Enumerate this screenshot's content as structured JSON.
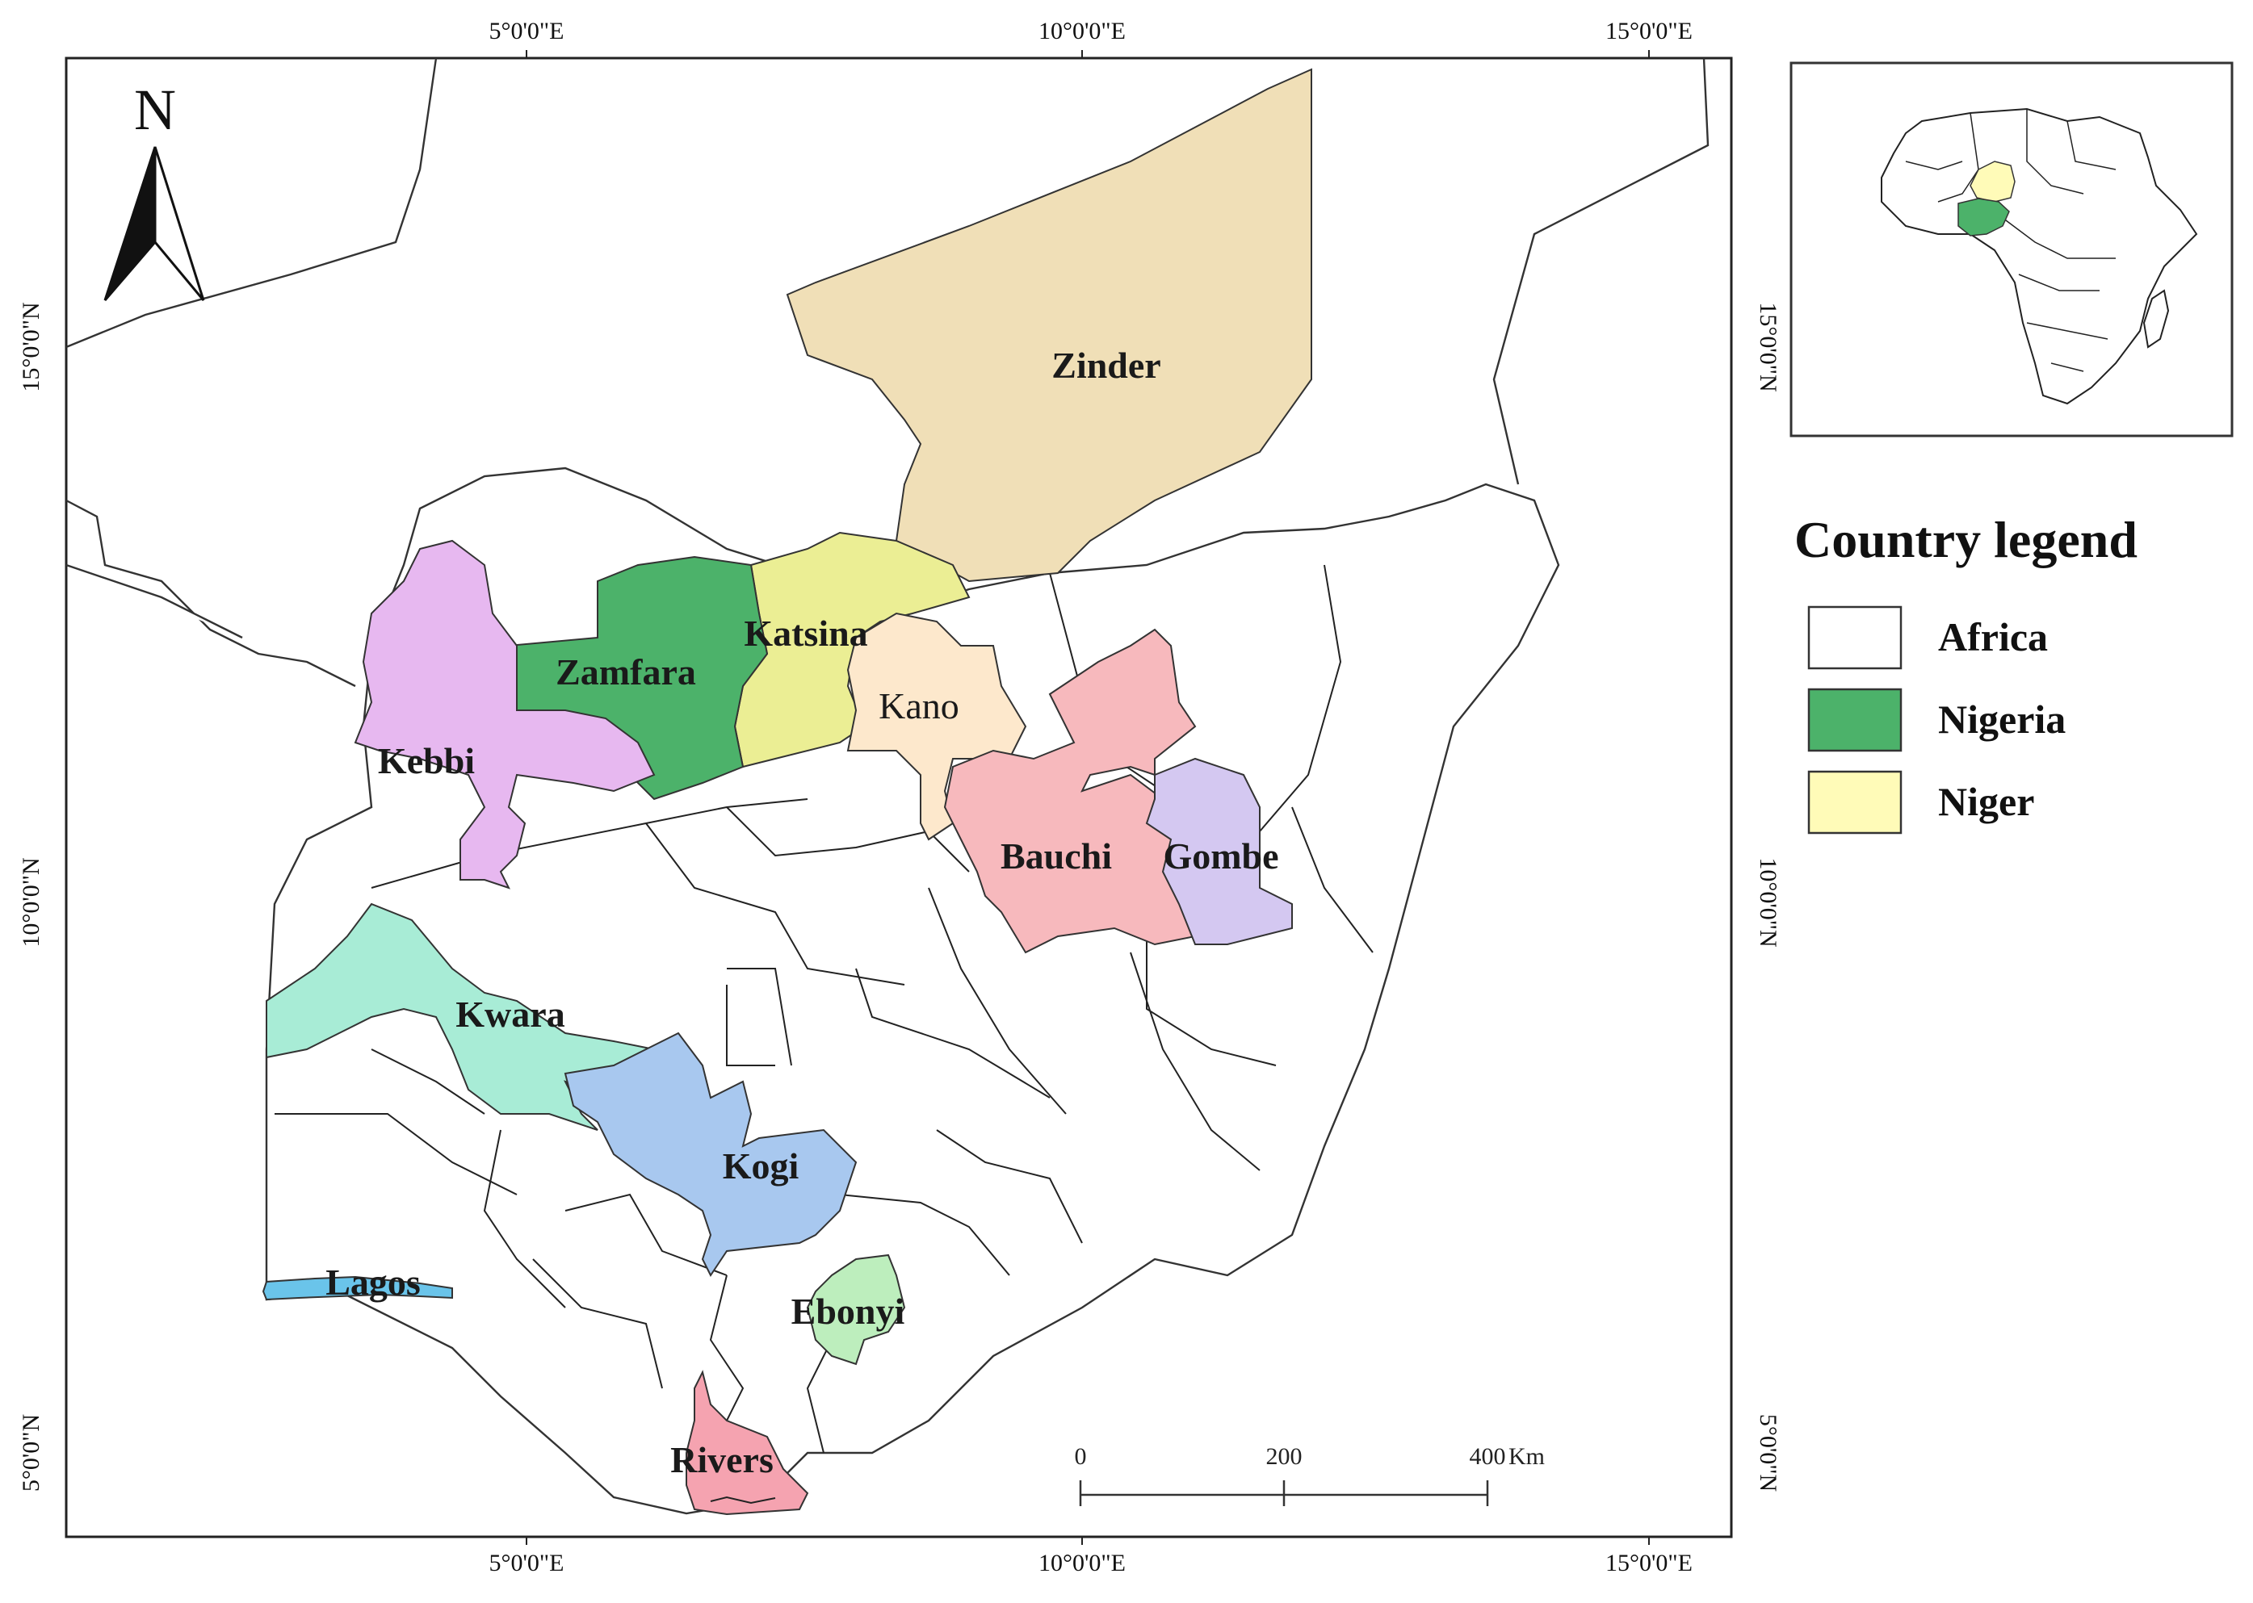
{
  "map": {
    "north_arrow": {
      "label": "N"
    },
    "coordinates": {
      "top": [
        "5°0'0\"E",
        "10°0'0\"E",
        "15°0'0\"E"
      ],
      "bottom": [
        "5°0'0\"E",
        "10°0'0\"E",
        "15°0'0\"E"
      ],
      "left": [
        "15°0'0\"N",
        "10°0'0\"N",
        "5°0'0\"N"
      ],
      "right": [
        "15°0'0\"N",
        "10°0'0\"N",
        "5°0'0\"N"
      ]
    },
    "regions": [
      {
        "name": "Zinder",
        "color": "#f0dfb7"
      },
      {
        "name": "Katsina",
        "color": "#ebee94"
      },
      {
        "name": "Zamfara",
        "color": "#4cb26a"
      },
      {
        "name": "Kebbi",
        "color": "#e7b8f0"
      },
      {
        "name": "Kano",
        "color": "#fde8cc"
      },
      {
        "name": "Bauchi",
        "color": "#f7b9bd"
      },
      {
        "name": "Gombe",
        "color": "#d4c8f1"
      },
      {
        "name": "Kwara",
        "color": "#a8ecd6"
      },
      {
        "name": "Kogi",
        "color": "#a8c8ef"
      },
      {
        "name": "Lagos",
        "color": "#6ac4ea"
      },
      {
        "name": "Ebonyi",
        "color": "#bdeebd"
      },
      {
        "name": "Rivers",
        "color": "#f5a3b0"
      }
    ],
    "scale_bar": {
      "ticks": [
        "0",
        "200",
        "400"
      ],
      "unit": "Km"
    }
  },
  "inset": {
    "highlight_nigeria": "#4cb26a",
    "highlight_niger": "#fffbb8"
  },
  "legend": {
    "title": "Country legend",
    "items": [
      {
        "label": "Africa",
        "color": "#ffffff"
      },
      {
        "label": "Nigeria",
        "color": "#4cb26a"
      },
      {
        "label": "Niger",
        "color": "#fffbb8"
      }
    ]
  }
}
